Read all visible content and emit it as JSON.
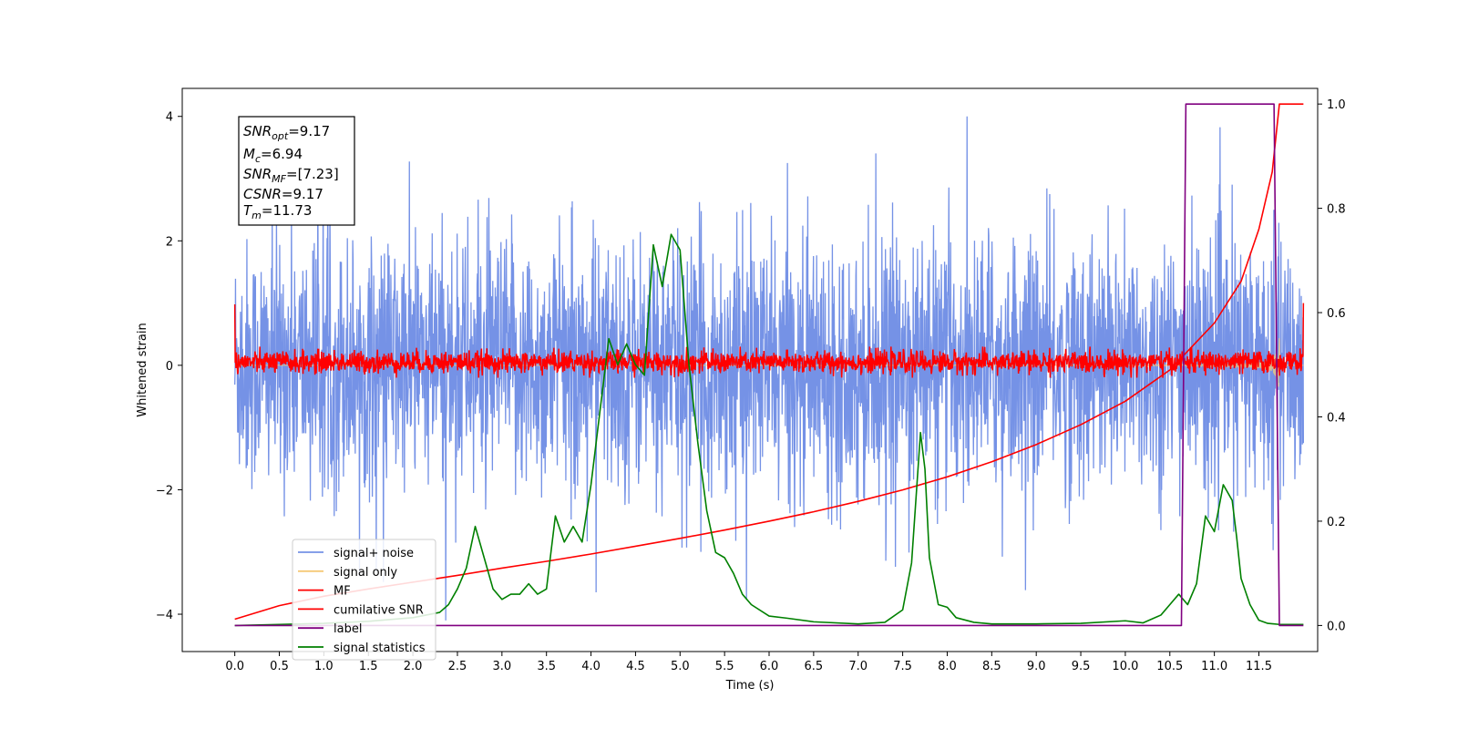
{
  "chart_data": {
    "type": "line",
    "xlabel": "Time (s)",
    "ylabel_left": "Whitened strain",
    "ylabel_right": "",
    "xlim": [
      -0.59,
      12.16
    ],
    "ylim_left": [
      -4.6,
      4.45
    ],
    "ylim_right": [
      -0.05,
      1.03
    ],
    "x_ticks": [
      "0.0",
      "0.5",
      "1.0",
      "1.5",
      "2.0",
      "2.5",
      "3.0",
      "3.5",
      "4.0",
      "4.5",
      "5.0",
      "5.5",
      "6.0",
      "6.5",
      "7.0",
      "7.5",
      "8.0",
      "8.5",
      "9.0",
      "9.5",
      "10.0",
      "10.5",
      "11.0",
      "11.5"
    ],
    "y_ticks_left": [
      "4",
      "2",
      "0",
      "−2",
      "−4"
    ],
    "y_ticks_right": [
      "1.0",
      "0.8",
      "0.6",
      "0.4",
      "0.2",
      "0.0"
    ],
    "grid": false,
    "legend_position": "lower-left",
    "annotation": {
      "snr_opt": {
        "sym": "SNR",
        "sub": "opt",
        "val": "=9.17"
      },
      "mc": {
        "sym": "M",
        "sub": "c",
        "val": "=6.94"
      },
      "snr_mf": {
        "sym": "SNR",
        "sub": "MF",
        "val": "=[7.23]"
      },
      "csnr": {
        "sym": "CSNR",
        "sub": "",
        "val": "=9.17"
      },
      "tm": {
        "sym": "T",
        "sub": "m",
        "val": "=11.73"
      }
    },
    "series": [
      {
        "name": "signal+ noise",
        "color": "#7592e6",
        "axis": "left",
        "kind": "noise",
        "amplitude_envelope": 2.0,
        "peaks_max": 4.0,
        "peaks_min": -4.1
      },
      {
        "name": "signal only",
        "color": "#f5c977",
        "axis": "left",
        "kind": "chirp",
        "merger_time": 11.73,
        "max_amplitude": 1.0
      },
      {
        "name": "MF",
        "color": "#ff0000",
        "axis": "left",
        "kind": "band",
        "range": [
          -0.2,
          0.3
        ]
      },
      {
        "name": "cumilative SNR",
        "color": "#ff0000",
        "axis": "right",
        "x": [
          0.0,
          0.5,
          1.0,
          1.5,
          2.0,
          2.5,
          3.0,
          3.5,
          4.0,
          4.5,
          5.0,
          5.5,
          6.0,
          6.5,
          7.0,
          7.5,
          8.0,
          8.5,
          9.0,
          9.5,
          10.0,
          10.5,
          11.0,
          11.3,
          11.5,
          11.65,
          11.73,
          11.85,
          12.0
        ],
        "y": [
          0.012,
          0.038,
          0.056,
          0.07,
          0.083,
          0.096,
          0.11,
          0.123,
          0.137,
          0.152,
          0.167,
          0.183,
          0.2,
          0.218,
          0.238,
          0.26,
          0.285,
          0.314,
          0.347,
          0.385,
          0.43,
          0.49,
          0.58,
          0.66,
          0.76,
          0.87,
          1.0,
          1.0,
          1.0
        ]
      },
      {
        "name": "label",
        "color": "#800080",
        "axis": "right",
        "x": [
          0.0,
          10.63,
          10.68,
          11.67,
          11.73,
          12.0
        ],
        "y": [
          0.0,
          0.0,
          1.0,
          1.0,
          0.0,
          0.0
        ]
      },
      {
        "name": "signal statistics",
        "color": "#008000",
        "axis": "right",
        "x": [
          0.0,
          0.5,
          1.0,
          1.5,
          2.0,
          2.3,
          2.4,
          2.5,
          2.6,
          2.7,
          2.8,
          2.9,
          3.0,
          3.1,
          3.2,
          3.3,
          3.4,
          3.5,
          3.6,
          3.7,
          3.8,
          3.9,
          4.0,
          4.1,
          4.2,
          4.3,
          4.4,
          4.5,
          4.6,
          4.7,
          4.8,
          4.9,
          5.0,
          5.1,
          5.2,
          5.3,
          5.4,
          5.5,
          5.6,
          5.7,
          5.8,
          6.0,
          6.2,
          6.5,
          7.0,
          7.3,
          7.5,
          7.6,
          7.7,
          7.75,
          7.8,
          7.9,
          8.0,
          8.1,
          8.3,
          8.5,
          9.0,
          9.5,
          10.0,
          10.2,
          10.4,
          10.5,
          10.6,
          10.7,
          10.8,
          10.9,
          11.0,
          11.1,
          11.2,
          11.25,
          11.3,
          11.4,
          11.5,
          11.6,
          11.73,
          11.9,
          12.0
        ],
        "y": [
          0.0,
          0.002,
          0.004,
          0.008,
          0.015,
          0.025,
          0.04,
          0.07,
          0.11,
          0.19,
          0.13,
          0.07,
          0.05,
          0.06,
          0.06,
          0.08,
          0.06,
          0.07,
          0.21,
          0.16,
          0.19,
          0.16,
          0.27,
          0.41,
          0.55,
          0.5,
          0.54,
          0.5,
          0.48,
          0.73,
          0.65,
          0.75,
          0.72,
          0.5,
          0.35,
          0.22,
          0.14,
          0.13,
          0.1,
          0.06,
          0.04,
          0.018,
          0.014,
          0.007,
          0.003,
          0.006,
          0.03,
          0.12,
          0.37,
          0.3,
          0.13,
          0.04,
          0.035,
          0.015,
          0.006,
          0.003,
          0.003,
          0.004,
          0.009,
          0.005,
          0.02,
          0.04,
          0.06,
          0.04,
          0.08,
          0.21,
          0.18,
          0.27,
          0.24,
          0.17,
          0.09,
          0.04,
          0.01,
          0.004,
          0.002,
          0.002,
          0.002
        ]
      }
    ]
  }
}
